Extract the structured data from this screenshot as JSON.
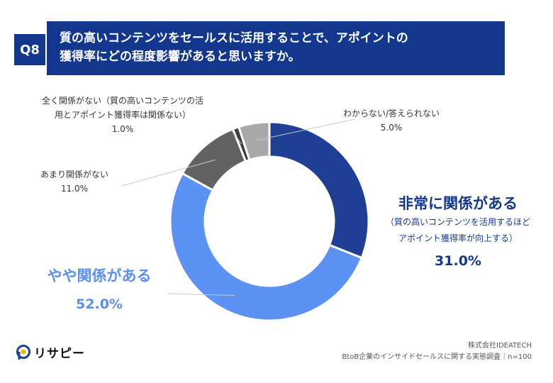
{
  "question": {
    "badge": "Q8",
    "line1": "質の高いコンテンツをセールスに活用することで、アポイントの",
    "line2": "獲得率にどの程度影響があると思いますか。"
  },
  "chart_data": {
    "type": "pie",
    "variant": "donut",
    "slices": [
      {
        "label": "非常に関係がある",
        "sublabel_1": "（質の高いコンテンツを活用するほど",
        "sublabel_2": "アポイント獲得率が向上する）",
        "value": 31.0,
        "value_label": "31.0%",
        "color": "#1f3f95"
      },
      {
        "label": "やや関係がある",
        "value": 52.0,
        "value_label": "52.0%",
        "color": "#5b92f4"
      },
      {
        "label": "あまり関係がない",
        "value": 11.0,
        "value_label": "11.0%",
        "color": "#626262"
      },
      {
        "label_1": "全く関係がない（質の高いコンテンツの活",
        "label_2": "用とアポイント獲得率は関係ない）",
        "value": 1.0,
        "value_label": "1.0%",
        "color": "#3d3d3d"
      },
      {
        "label": "わからない/答えられない",
        "value": 5.0,
        "value_label": "5.0%",
        "color": "#a9a9a9"
      }
    ],
    "start_angle": "12 o'clock",
    "direction": "clockwise",
    "legend": "none"
  },
  "brand": {
    "name": "リサピー",
    "logo_colors": [
      "#1f3f95",
      "#f2b705"
    ]
  },
  "source": {
    "line1": "株式会社IDEATECH",
    "line2": "BtoB企業のインサイドセールスに関する実態調査｜n=100"
  }
}
